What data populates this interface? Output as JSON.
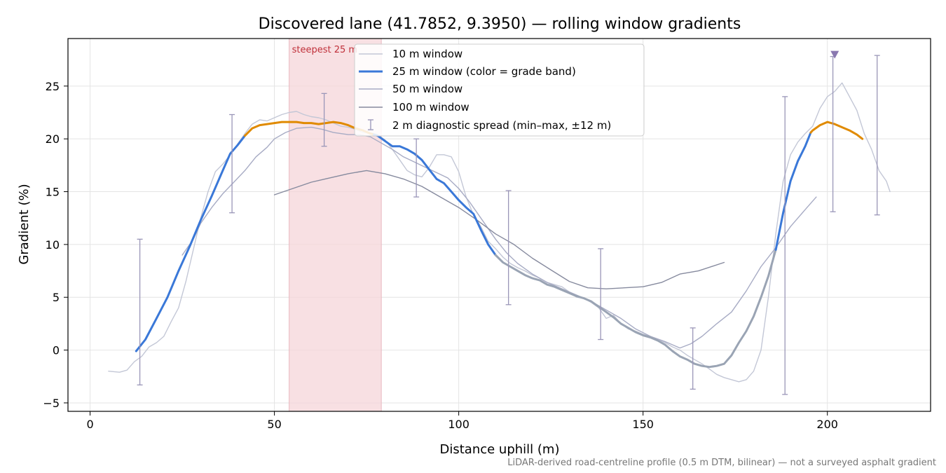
{
  "chart_data": {
    "type": "line",
    "title": "Discovered lane (41.7852, 9.3950) — rolling window gradients",
    "xlabel": "Distance uphill (m)",
    "ylabel": "Gradient (%)",
    "xlim": [
      -6,
      228
    ],
    "ylim": [
      -5.8,
      29.5
    ],
    "xticks": [
      0,
      50,
      100,
      150,
      200
    ],
    "yticks": [
      -5,
      0,
      5,
      10,
      15,
      20,
      25
    ],
    "grid": true,
    "legend_position": "top-center",
    "footnote": "LiDAR-derived road-centreline profile (0.5 m DTM, bilinear) — not a surveyed asphalt gradient",
    "highlight": {
      "label": "steepest 25 m",
      "x_start": 54,
      "x_end": 79,
      "color": "#f5d5da"
    },
    "peak_marker": {
      "x": 202,
      "y": 28,
      "color": "#8a78b0"
    },
    "grade_band_colors": {
      "normal": "#3a78d8",
      "steep": "#e08a00",
      "descent": "#9aa4b4"
    },
    "series": [
      {
        "name": "10 m window",
        "color": "#c3c7d6",
        "width": 1.4,
        "points": [
          [
            5,
            -2
          ],
          [
            8,
            -2.1
          ],
          [
            10,
            -1.9
          ],
          [
            12,
            -1.1
          ],
          [
            14,
            -0.6
          ],
          [
            16,
            0.3
          ],
          [
            18,
            0.7
          ],
          [
            20,
            1.3
          ],
          [
            22,
            2.7
          ],
          [
            24,
            4
          ],
          [
            26,
            6.5
          ],
          [
            28,
            9.5
          ],
          [
            30,
            12.5
          ],
          [
            32,
            15
          ],
          [
            34,
            16.9
          ],
          [
            36,
            17.6
          ],
          [
            38,
            18.5
          ],
          [
            40,
            19.5
          ],
          [
            42,
            20.5
          ],
          [
            44,
            21.4
          ],
          [
            46,
            21.8
          ],
          [
            48,
            21.7
          ],
          [
            50,
            22
          ],
          [
            52,
            22.3
          ],
          [
            54,
            22.5
          ],
          [
            56,
            22.6
          ],
          [
            58,
            22.3
          ],
          [
            60,
            22.1
          ],
          [
            62,
            22
          ],
          [
            64,
            21.8
          ],
          [
            66,
            21.5
          ],
          [
            68,
            21.2
          ],
          [
            70,
            21.1
          ],
          [
            72,
            20.9
          ],
          [
            74,
            20.6
          ],
          [
            76,
            20.6
          ],
          [
            78,
            20.4
          ],
          [
            80,
            19.9
          ],
          [
            82,
            19
          ],
          [
            84,
            18
          ],
          [
            86,
            17
          ],
          [
            88,
            16.6
          ],
          [
            90,
            16.4
          ],
          [
            92,
            17.3
          ],
          [
            94,
            18.5
          ],
          [
            96,
            18.5
          ],
          [
            98,
            18.3
          ],
          [
            100,
            16.9
          ],
          [
            102,
            14.5
          ],
          [
            104,
            12.8
          ],
          [
            106,
            11.7
          ],
          [
            108,
            10.3
          ],
          [
            110,
            9.6
          ],
          [
            112,
            8.8
          ],
          [
            114,
            8.2
          ],
          [
            116,
            7.8
          ],
          [
            118,
            7.5
          ],
          [
            120,
            7.1
          ],
          [
            122,
            6.8
          ],
          [
            124,
            6.4
          ],
          [
            126,
            6.2
          ],
          [
            128,
            6
          ],
          [
            130,
            5.5
          ],
          [
            132,
            5
          ],
          [
            134,
            4.9
          ],
          [
            136,
            4.5
          ],
          [
            138,
            4
          ],
          [
            140,
            3
          ],
          [
            142,
            3.3
          ],
          [
            144,
            2.5
          ],
          [
            146,
            2
          ],
          [
            148,
            1.8
          ],
          [
            150,
            1.5
          ],
          [
            152,
            1.3
          ],
          [
            154,
            1
          ],
          [
            156,
            0.7
          ],
          [
            158,
            0.3
          ],
          [
            160,
            0
          ],
          [
            162,
            -0.5
          ],
          [
            164,
            -0.9
          ],
          [
            166,
            -1.3
          ],
          [
            168,
            -1.8
          ],
          [
            170,
            -2.3
          ],
          [
            172,
            -2.6
          ],
          [
            174,
            -2.8
          ],
          [
            176,
            -3
          ],
          [
            178,
            -2.8
          ],
          [
            180,
            -2
          ],
          [
            182,
            0
          ],
          [
            184,
            5
          ],
          [
            186,
            11
          ],
          [
            188,
            16
          ],
          [
            190,
            18.5
          ],
          [
            192,
            19.7
          ],
          [
            194,
            20.5
          ],
          [
            196,
            21.2
          ],
          [
            198,
            22.9
          ],
          [
            200,
            24
          ],
          [
            202,
            24.5
          ],
          [
            204,
            25.3
          ],
          [
            206,
            24
          ],
          [
            208,
            22.7
          ],
          [
            210,
            20.5
          ],
          [
            212,
            19
          ],
          [
            214,
            17
          ],
          [
            216,
            16
          ],
          [
            217,
            15
          ]
        ]
      },
      {
        "name": "25 m window (color = grade band)",
        "color": "#3a78d8",
        "width": 3,
        "points": [
          [
            12.5,
            -0.1
          ],
          [
            15,
            1
          ],
          [
            18,
            3
          ],
          [
            21,
            5
          ],
          [
            24,
            7.5
          ],
          [
            27,
            9.8
          ],
          [
            30,
            12.3
          ],
          [
            33,
            14.6
          ],
          [
            36,
            17
          ],
          [
            38,
            18.6
          ],
          [
            40,
            19.4
          ],
          [
            42,
            20.3
          ],
          [
            44,
            21
          ],
          [
            46,
            21.3
          ],
          [
            48,
            21.4
          ],
          [
            50,
            21.5
          ],
          [
            52,
            21.6
          ],
          [
            54,
            21.6
          ],
          [
            56,
            21.6
          ],
          [
            58,
            21.5
          ],
          [
            60,
            21.5
          ],
          [
            62,
            21.4
          ],
          [
            64,
            21.5
          ],
          [
            66,
            21.6
          ],
          [
            68,
            21.5
          ],
          [
            70,
            21.3
          ],
          [
            72,
            21
          ],
          [
            74,
            20.8
          ],
          [
            76,
            20.5
          ],
          [
            78,
            20.3
          ],
          [
            80,
            19.8
          ],
          [
            82,
            19.3
          ],
          [
            84,
            19.3
          ],
          [
            86,
            19
          ],
          [
            88,
            18.6
          ],
          [
            90,
            18
          ],
          [
            92,
            17.1
          ],
          [
            94,
            16.2
          ],
          [
            96,
            15.8
          ],
          [
            98,
            15
          ],
          [
            100,
            14.2
          ],
          [
            102,
            13.5
          ],
          [
            104,
            12.9
          ],
          [
            106,
            11.4
          ],
          [
            108,
            10
          ],
          [
            110,
            9
          ],
          [
            112,
            8.3
          ],
          [
            114,
            7.9
          ],
          [
            116,
            7.5
          ],
          [
            118,
            7.1
          ],
          [
            120,
            6.8
          ],
          [
            122,
            6.6
          ],
          [
            124,
            6.2
          ],
          [
            126,
            6
          ],
          [
            128,
            5.7
          ],
          [
            130,
            5.4
          ],
          [
            132,
            5.1
          ],
          [
            134,
            4.9
          ],
          [
            136,
            4.6
          ],
          [
            138,
            4.1
          ],
          [
            140,
            3.6
          ],
          [
            142,
            3.1
          ],
          [
            144,
            2.5
          ],
          [
            146,
            2.1
          ],
          [
            148,
            1.7
          ],
          [
            150,
            1.4
          ],
          [
            152,
            1.2
          ],
          [
            154,
            0.9
          ],
          [
            156,
            0.5
          ],
          [
            158,
            -0.1
          ],
          [
            160,
            -0.6
          ],
          [
            162,
            -0.9
          ],
          [
            164,
            -1.3
          ],
          [
            166,
            -1.5
          ],
          [
            168,
            -1.6
          ],
          [
            170,
            -1.5
          ],
          [
            172,
            -1.3
          ],
          [
            174,
            -0.5
          ],
          [
            176,
            0.7
          ],
          [
            178,
            1.8
          ],
          [
            180,
            3.2
          ],
          [
            182,
            5
          ],
          [
            184,
            7
          ],
          [
            186,
            9.5
          ],
          [
            188,
            13
          ],
          [
            190,
            16
          ],
          [
            192,
            17.9
          ],
          [
            194,
            19.3
          ],
          [
            195.5,
            20.6
          ],
          [
            196,
            20.8
          ],
          [
            198,
            21.3
          ],
          [
            200,
            21.6
          ],
          [
            202,
            21.4
          ],
          [
            204,
            21.1
          ],
          [
            206,
            20.8
          ],
          [
            208,
            20.4
          ],
          [
            209.5,
            20
          ]
        ],
        "bands": [
          {
            "band": "normal",
            "x_start": 12.5,
            "x_end": 42
          },
          {
            "band": "steep",
            "x_start": 42,
            "x_end": 77
          },
          {
            "band": "normal",
            "x_start": 77,
            "x_end": 110
          },
          {
            "band": "descent",
            "x_start": 110,
            "x_end": 186
          },
          {
            "band": "normal",
            "x_start": 186,
            "x_end": 195.5
          },
          {
            "band": "steep",
            "x_start": 195.5,
            "x_end": 209.5
          }
        ]
      },
      {
        "name": "50 m window",
        "color": "#a7abc4",
        "width": 1.4,
        "points": [
          [
            25,
            9
          ],
          [
            28,
            10.5
          ],
          [
            30,
            12
          ],
          [
            33,
            13.5
          ],
          [
            36,
            14.8
          ],
          [
            39,
            15.9
          ],
          [
            42,
            17
          ],
          [
            45,
            18.3
          ],
          [
            48,
            19.2
          ],
          [
            50,
            20
          ],
          [
            53,
            20.6
          ],
          [
            56,
            21
          ],
          [
            60,
            21.1
          ],
          [
            63,
            20.9
          ],
          [
            66,
            20.6
          ],
          [
            70,
            20.4
          ],
          [
            73,
            20.4
          ],
          [
            76,
            20.2
          ],
          [
            79,
            19.6
          ],
          [
            82,
            19
          ],
          [
            85,
            18.3
          ],
          [
            88,
            17.8
          ],
          [
            91,
            17.3
          ],
          [
            94,
            16.8
          ],
          [
            97,
            16.3
          ],
          [
            100,
            15.3
          ],
          [
            103,
            14
          ],
          [
            106,
            12.5
          ],
          [
            110,
            10.5
          ],
          [
            113,
            9.2
          ],
          [
            116,
            8.2
          ],
          [
            120,
            7.2
          ],
          [
            124,
            6.4
          ],
          [
            128,
            5.8
          ],
          [
            132,
            5.2
          ],
          [
            136,
            4.6
          ],
          [
            140,
            3.8
          ],
          [
            144,
            3
          ],
          [
            148,
            2
          ],
          [
            152,
            1.3
          ],
          [
            156,
            0.8
          ],
          [
            160,
            0.2
          ],
          [
            163,
            0.6
          ],
          [
            166,
            1.3
          ],
          [
            170,
            2.5
          ],
          [
            174,
            3.6
          ],
          [
            178,
            5.6
          ],
          [
            182,
            7.9
          ],
          [
            186,
            9.7
          ],
          [
            190,
            11.7
          ],
          [
            194,
            13.3
          ],
          [
            197,
            14.5
          ]
        ]
      },
      {
        "name": "100 m window",
        "color": "#868a9e",
        "width": 1.4,
        "points": [
          [
            50,
            14.7
          ],
          [
            55,
            15.3
          ],
          [
            60,
            15.9
          ],
          [
            65,
            16.3
          ],
          [
            70,
            16.7
          ],
          [
            75,
            17
          ],
          [
            80,
            16.7
          ],
          [
            85,
            16.2
          ],
          [
            90,
            15.5
          ],
          [
            95,
            14.5
          ],
          [
            100,
            13.5
          ],
          [
            105,
            12.3
          ],
          [
            110,
            11
          ],
          [
            115,
            10
          ],
          [
            120,
            8.7
          ],
          [
            125,
            7.6
          ],
          [
            130,
            6.5
          ],
          [
            135,
            5.9
          ],
          [
            140,
            5.8
          ],
          [
            145,
            5.9
          ],
          [
            150,
            6
          ],
          [
            155,
            6.4
          ],
          [
            160,
            7.2
          ],
          [
            165,
            7.5
          ],
          [
            172,
            8.3
          ]
        ]
      }
    ],
    "error_bars": {
      "name": "2 m diagnostic spread (min–max, ±12 m)",
      "color": "#9a96b8",
      "items": [
        {
          "x": 13.5,
          "low": -3.3,
          "high": 10.5
        },
        {
          "x": 38.5,
          "low": 13,
          "high": 22.3
        },
        {
          "x": 63.5,
          "low": 19.3,
          "high": 24.3
        },
        {
          "x": 76,
          "low": 20.8,
          "high": 21.8
        },
        {
          "x": 88.5,
          "low": 14.5,
          "high": 20
        },
        {
          "x": 113.5,
          "low": 4.3,
          "high": 15.1
        },
        {
          "x": 138.5,
          "low": 1,
          "high": 9.6
        },
        {
          "x": 163.5,
          "low": -3.7,
          "high": 2.1
        },
        {
          "x": 188.5,
          "low": -4.2,
          "high": 24
        },
        {
          "x": 201.5,
          "low": 13.1,
          "high": 27.8
        },
        {
          "x": 213.5,
          "low": 12.8,
          "high": 27.9
        }
      ]
    }
  }
}
